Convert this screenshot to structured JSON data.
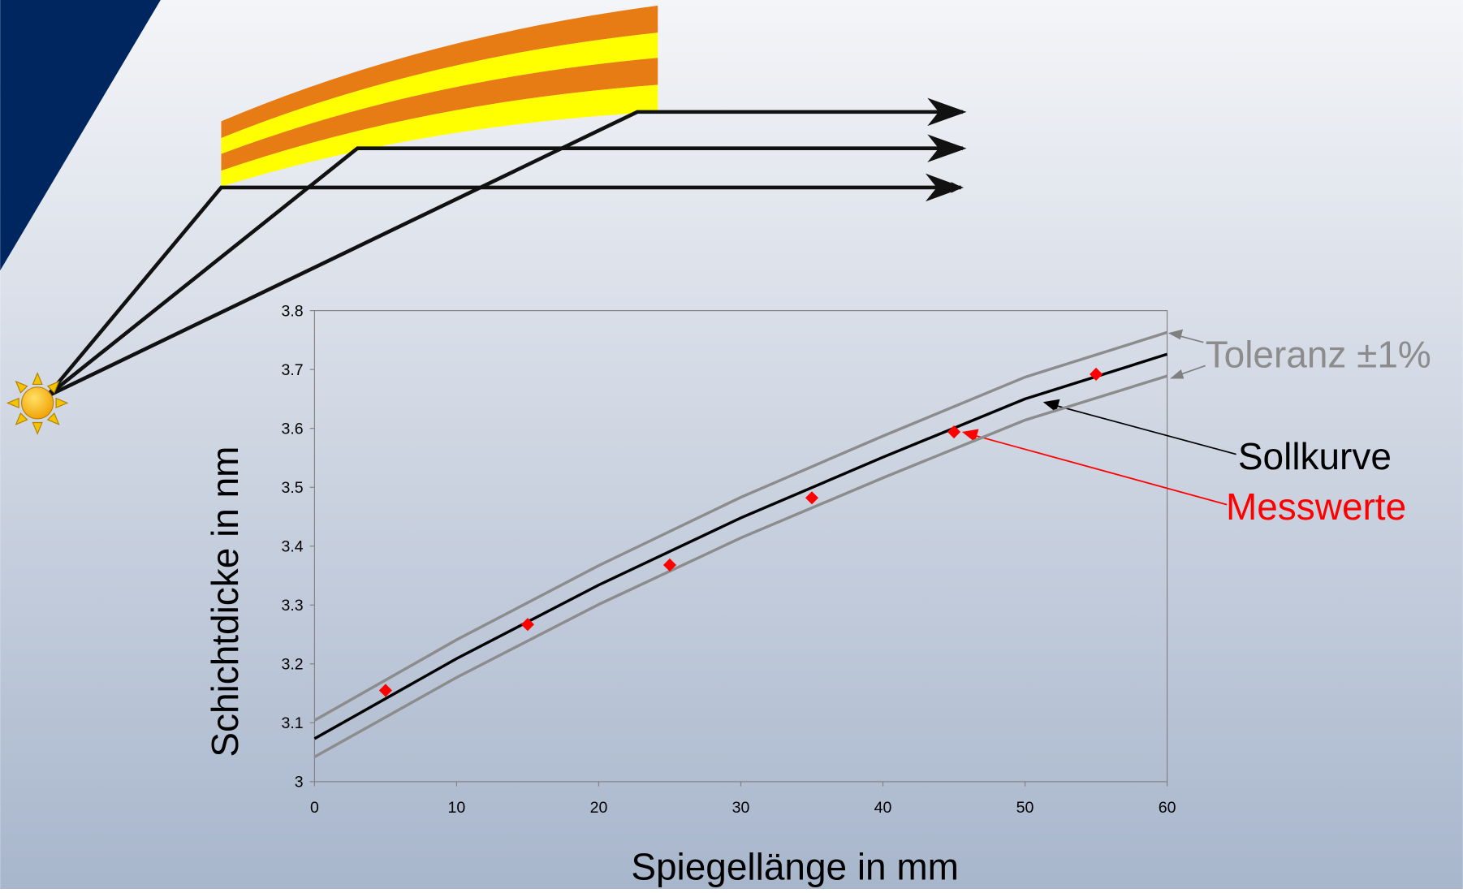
{
  "chart_data": {
    "type": "line",
    "x_label": "Spiegellänge in mm",
    "y_label": "Schichtdicke in nm",
    "xlim": [
      0,
      60
    ],
    "ylim": [
      3,
      3.8
    ],
    "xticks": [
      0,
      10,
      20,
      30,
      40,
      50,
      60
    ],
    "yticks": [
      3,
      3.1,
      3.2,
      3.3,
      3.4,
      3.5,
      3.6,
      3.7,
      3.8
    ],
    "tolerance": {
      "label": "Toleranz ±1%",
      "color": "#8c8c8c",
      "x": [
        0,
        10,
        20,
        30,
        40,
        50,
        60
      ],
      "upper": [
        3.104,
        3.241,
        3.367,
        3.483,
        3.587,
        3.687,
        3.763
      ],
      "lower": [
        3.042,
        3.177,
        3.301,
        3.414,
        3.516,
        3.614,
        3.689
      ]
    },
    "series": [
      {
        "name": "Sollkurve",
        "color": "#000000",
        "style": "line",
        "x": [
          0,
          10,
          20,
          30,
          40,
          50,
          60
        ],
        "values": [
          3.073,
          3.209,
          3.334,
          3.448,
          3.551,
          3.65,
          3.726
        ]
      },
      {
        "name": "Messwerte",
        "color": "#ff0000",
        "style": "marker",
        "x": [
          5,
          15,
          25,
          35,
          45,
          55
        ],
        "values": [
          3.155,
          3.267,
          3.368,
          3.482,
          3.594,
          3.692
        ]
      }
    ]
  }
}
